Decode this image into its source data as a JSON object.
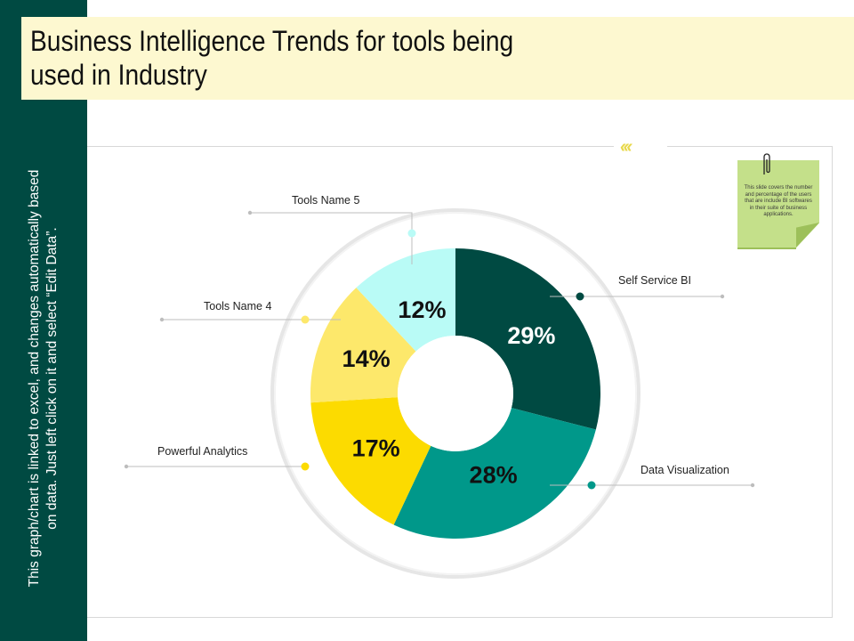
{
  "sidebar": {
    "text": "This graph/chart is linked to excel, and changes automatically based\non data. Just left click on it and select “Edit Data”."
  },
  "header": {
    "title": "Business Intelligence Trends for tools being\nused in Industry"
  },
  "note": {
    "text": "This slide covers the number and percentage of the users that are include BI softwares in their suite of business applications."
  },
  "chevrons": "‹‹‹",
  "colors": {
    "dark_green": "#004a42",
    "teal": "#00988a",
    "yellow": "#fcdb00",
    "light_yellow": "#fde86b",
    "light_cyan": "#b9fbf6"
  },
  "chart_data": {
    "type": "pie",
    "variant": "donut",
    "title": "",
    "unit": "%",
    "slices": [
      {
        "label": "Self Service BI",
        "value": 29,
        "display": "29%",
        "color": "#004a42",
        "text_color": "#ffffff"
      },
      {
        "label": "Data Visualization",
        "value": 28,
        "display": "28%",
        "color": "#00988a",
        "text_color": "#111111"
      },
      {
        "label": "Powerful Analytics",
        "value": 17,
        "display": "17%",
        "color": "#fcdb00",
        "text_color": "#111111"
      },
      {
        "label": "Tools Name 4",
        "value": 14,
        "display": "14%",
        "color": "#fde86b",
        "text_color": "#111111"
      },
      {
        "label": "Tools Name 5",
        "value": 12,
        "display": "12%",
        "color": "#b9fbf6",
        "text_color": "#111111"
      }
    ]
  }
}
